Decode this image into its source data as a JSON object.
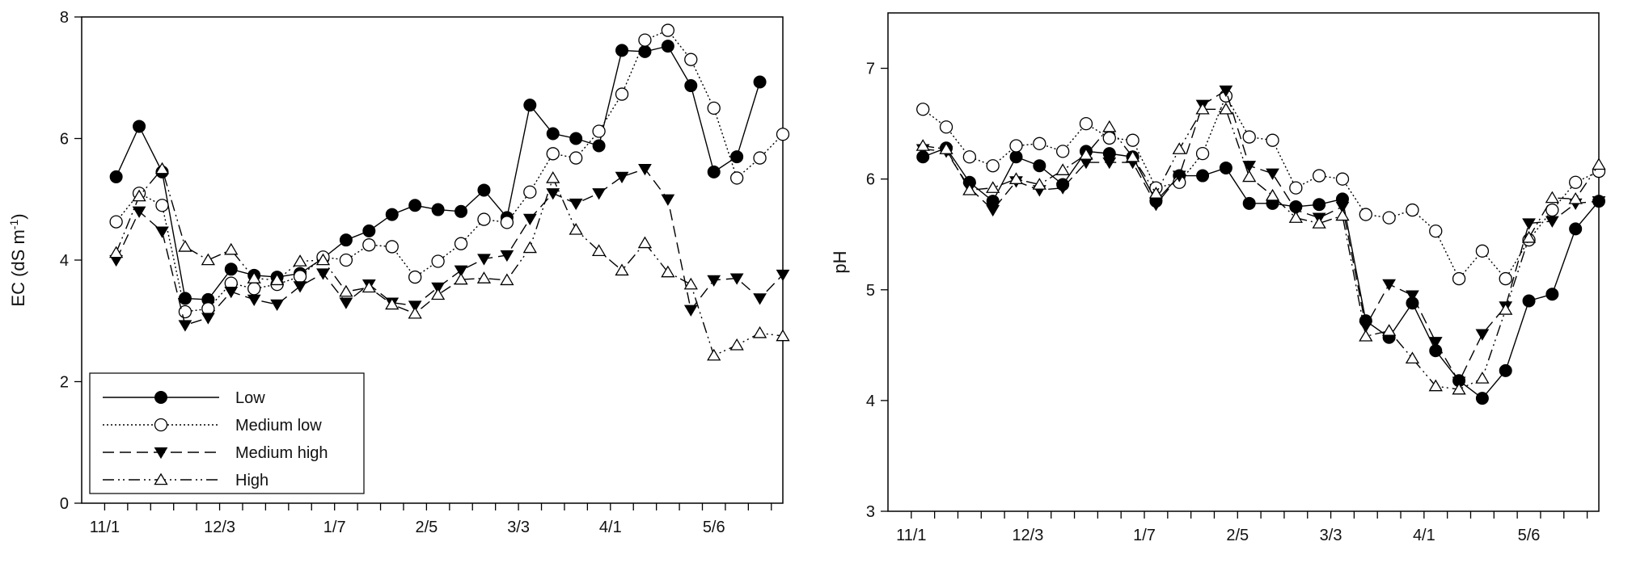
{
  "chart_data": [
    {
      "type": "line",
      "title": "",
      "xlabel": "",
      "ylabel": "EC (dS m",
      "ylabel_sup": "-1",
      "ylabel_close": ")",
      "ylim": [
        0,
        8
      ],
      "yticks": [
        0,
        2,
        4,
        6,
        8
      ],
      "xlim": [
        0,
        30.5
      ],
      "xticks": [
        1,
        2,
        3,
        4,
        5,
        6,
        7,
        8,
        9,
        10,
        11,
        12,
        13,
        14,
        15,
        16,
        17,
        18,
        19,
        20,
        21,
        22,
        23,
        24,
        25,
        26,
        27,
        28,
        29,
        30
      ],
      "xtick_labels": [
        {
          "pos": 1,
          "label": "11/1"
        },
        {
          "pos": 6,
          "label": "12/3"
        },
        {
          "pos": 11,
          "label": "1/7"
        },
        {
          "pos": 15,
          "label": "2/5"
        },
        {
          "pos": 19,
          "label": "3/3"
        },
        {
          "pos": 23,
          "label": "4/1"
        },
        {
          "pos": 27.5,
          "label": "5/6"
        }
      ],
      "legend_position": "bottom-left",
      "x": [
        1.5,
        2.5,
        3.5,
        4.5,
        5.5,
        6.5,
        7.5,
        8.5,
        9.5,
        10.5,
        11.5,
        12.5,
        13.5,
        14.5,
        15.5,
        16.5,
        17.5,
        18.5,
        19.5,
        20.5,
        21.5,
        22.5,
        23.5,
        24.5,
        25.5,
        26.5,
        27.5,
        28.5,
        29.5,
        30.5
      ],
      "series": [
        {
          "name": "Low",
          "marker": "filled-circle",
          "dash": "solid",
          "values": [
            5.37,
            6.2,
            5.45,
            3.37,
            3.35,
            3.85,
            3.75,
            3.72,
            3.78,
            4.03,
            4.33,
            4.48,
            4.75,
            4.9,
            4.83,
            4.8,
            5.15,
            4.7,
            6.55,
            6.08,
            6.0,
            5.88,
            7.45,
            7.43,
            7.52,
            6.87,
            5.45,
            5.7,
            6.93,
            null
          ]
        },
        {
          "name": "Medium low",
          "marker": "open-circle",
          "dash": "dotted",
          "values": [
            4.63,
            5.1,
            4.9,
            3.15,
            3.2,
            3.62,
            3.53,
            3.6,
            3.73,
            4.05,
            4.0,
            4.25,
            4.22,
            3.72,
            3.98,
            4.27,
            4.67,
            4.62,
            5.12,
            5.75,
            5.68,
            6.12,
            6.73,
            7.62,
            7.78,
            7.3,
            6.5,
            5.35,
            5.68,
            6.07
          ]
        },
        {
          "name": "Medium high",
          "marker": "filled-triangle-down",
          "dash": "dashed",
          "values": [
            4.0,
            4.8,
            4.47,
            2.93,
            3.05,
            3.48,
            3.35,
            3.27,
            3.57,
            3.78,
            3.3,
            3.6,
            3.3,
            3.25,
            3.55,
            3.83,
            4.02,
            4.08,
            4.68,
            5.1,
            4.93,
            5.1,
            5.37,
            5.5,
            5.0,
            3.18,
            3.67,
            3.7,
            3.37,
            3.76
          ]
        },
        {
          "name": "High",
          "marker": "open-triangle-up",
          "dash": "dash-dot-dot",
          "values": [
            4.12,
            5.05,
            5.5,
            4.22,
            4.0,
            4.17,
            3.7,
            3.67,
            3.98,
            4.0,
            3.48,
            3.55,
            3.27,
            3.12,
            3.43,
            3.68,
            3.7,
            3.67,
            4.2,
            5.35,
            4.5,
            4.15,
            3.83,
            4.28,
            3.8,
            3.6,
            2.43,
            2.6,
            2.8,
            2.75
          ]
        }
      ]
    },
    {
      "type": "line",
      "title": "",
      "xlabel": "",
      "ylabel": "pH",
      "ylim": [
        3,
        7.5
      ],
      "yticks": [
        3,
        4,
        5,
        6,
        7
      ],
      "xlim": [
        0,
        30.5
      ],
      "xticks": [
        1,
        2,
        3,
        4,
        5,
        6,
        7,
        8,
        9,
        10,
        11,
        12,
        13,
        14,
        15,
        16,
        17,
        18,
        19,
        20,
        21,
        22,
        23,
        24,
        25,
        26,
        27,
        28,
        29,
        30
      ],
      "xtick_labels": [
        {
          "pos": 1,
          "label": "11/1"
        },
        {
          "pos": 6,
          "label": "12/3"
        },
        {
          "pos": 11,
          "label": "1/7"
        },
        {
          "pos": 15,
          "label": "2/5"
        },
        {
          "pos": 19,
          "label": "3/3"
        },
        {
          "pos": 23,
          "label": "4/1"
        },
        {
          "pos": 27.5,
          "label": "5/6"
        }
      ],
      "x": [
        1.5,
        2.5,
        3.5,
        4.5,
        5.5,
        6.5,
        7.5,
        8.5,
        9.5,
        10.5,
        11.5,
        12.5,
        13.5,
        14.5,
        15.5,
        16.5,
        17.5,
        18.5,
        19.5,
        20.5,
        21.5,
        22.5,
        23.5,
        24.5,
        25.5,
        26.5,
        27.5,
        28.5,
        29.5,
        30.5
      ],
      "series": [
        {
          "name": "Low",
          "marker": "filled-circle",
          "dash": "solid",
          "values": [
            6.2,
            6.28,
            5.97,
            5.8,
            6.2,
            6.12,
            5.95,
            6.25,
            6.23,
            6.2,
            5.8,
            6.03,
            6.03,
            6.1,
            5.78,
            5.78,
            5.75,
            5.77,
            5.82,
            4.72,
            4.57,
            4.88,
            4.45,
            4.18,
            4.02,
            4.27,
            4.9,
            4.96,
            5.55,
            5.8
          ]
        },
        {
          "name": "Medium low",
          "marker": "open-circle",
          "dash": "dotted",
          "values": [
            6.63,
            6.47,
            6.2,
            6.12,
            6.3,
            6.32,
            6.25,
            6.5,
            6.37,
            6.35,
            5.92,
            5.97,
            6.23,
            6.75,
            6.38,
            6.35,
            5.92,
            6.03,
            6.0,
            5.68,
            5.65,
            5.72,
            5.53,
            5.1,
            5.35,
            5.1,
            5.45,
            5.72,
            5.97,
            6.07
          ]
        },
        {
          "name": "Medium high",
          "marker": "filled-triangle-down",
          "dash": "dashed",
          "values": [
            6.27,
            6.25,
            5.92,
            5.72,
            5.98,
            5.9,
            5.92,
            6.15,
            6.15,
            6.15,
            5.77,
            6.03,
            6.67,
            6.8,
            6.12,
            6.05,
            5.72,
            5.65,
            5.75,
            4.67,
            5.05,
            4.95,
            4.53,
            4.17,
            4.6,
            4.85,
            5.6,
            5.62,
            5.78,
            5.8
          ]
        },
        {
          "name": "High",
          "marker": "open-triangle-up",
          "dash": "dash-dot-dot",
          "values": [
            6.3,
            6.27,
            5.9,
            5.92,
            6.0,
            5.95,
            6.08,
            6.22,
            6.47,
            6.2,
            5.87,
            6.27,
            6.63,
            6.63,
            6.02,
            5.85,
            5.65,
            5.6,
            5.67,
            4.58,
            4.63,
            4.38,
            4.13,
            4.1,
            4.2,
            4.82,
            5.47,
            5.83,
            5.82,
            6.13
          ]
        }
      ]
    }
  ]
}
